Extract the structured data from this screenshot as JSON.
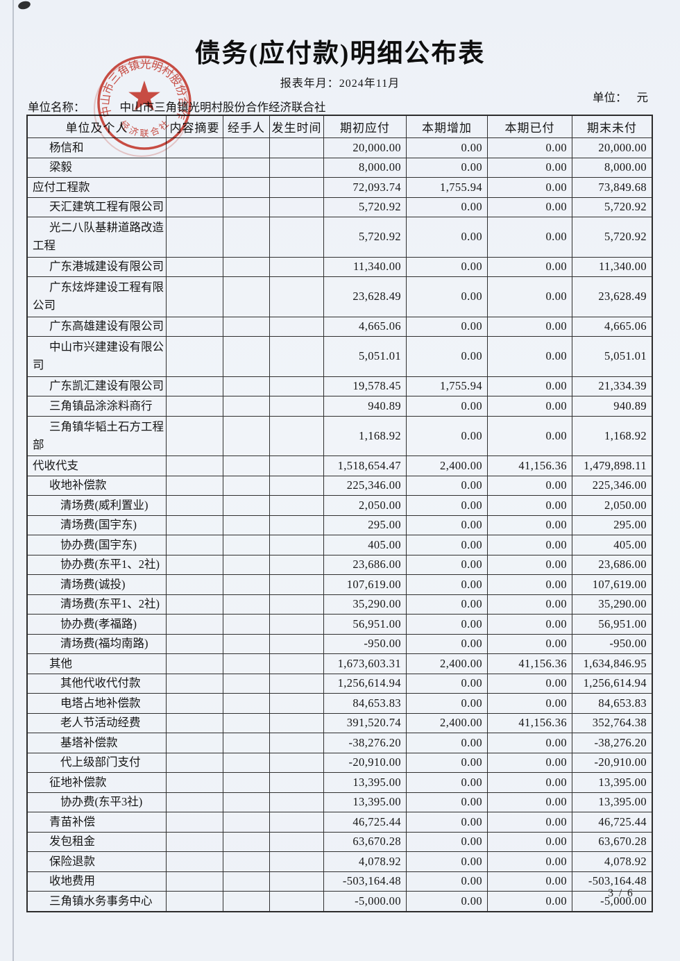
{
  "page": {
    "title": "债务(应付款)明细公布表",
    "report_period_label": "报表年月：",
    "report_period": "2024年11月",
    "unit_name_label": "单位名称：",
    "unit_name": "中山市三角镇光明村股份合作经济联合社",
    "unit_label": "单位：",
    "unit_value": "元",
    "page_number": "3 / 6"
  },
  "stamp": {
    "ring_text": "中山市三角镇光明村股份合作",
    "bottom_text": "经济联合社",
    "color": "#cf382b"
  },
  "table": {
    "headers": [
      "单位及个人",
      "内容摘要",
      "经手人",
      "发生时间",
      "期初应付",
      "本期增加",
      "本期已付",
      "期末未付"
    ],
    "rows": [
      {
        "label": "杨信和",
        "indent": 1,
        "tall": false,
        "values": [
          "20,000.00",
          "0.00",
          "0.00",
          "20,000.00"
        ]
      },
      {
        "label": "梁毅",
        "indent": 1,
        "tall": false,
        "values": [
          "8,000.00",
          "0.00",
          "0.00",
          "8,000.00"
        ]
      },
      {
        "label": "应付工程款",
        "indent": 0,
        "tall": false,
        "values": [
          "72,093.74",
          "1,755.94",
          "0.00",
          "73,849.68"
        ]
      },
      {
        "label": "天汇建筑工程有限公司",
        "indent": 1,
        "tall": false,
        "values": [
          "5,720.92",
          "0.00",
          "0.00",
          "5,720.92"
        ]
      },
      {
        "label": "光二八队基耕道路改造工程",
        "indent": 1,
        "tall": true,
        "values": [
          "5,720.92",
          "0.00",
          "0.00",
          "5,720.92"
        ]
      },
      {
        "label": "广东港城建设有限公司",
        "indent": 1,
        "tall": false,
        "values": [
          "11,340.00",
          "0.00",
          "0.00",
          "11,340.00"
        ]
      },
      {
        "label": "广东炫烨建设工程有限公司",
        "indent": 1,
        "tall": true,
        "values": [
          "23,628.49",
          "0.00",
          "0.00",
          "23,628.49"
        ]
      },
      {
        "label": "广东高雄建设有限公司",
        "indent": 1,
        "tall": false,
        "values": [
          "4,665.06",
          "0.00",
          "0.00",
          "4,665.06"
        ]
      },
      {
        "label": "中山市兴建建设有限公司",
        "indent": 1,
        "tall": true,
        "values": [
          "5,051.01",
          "0.00",
          "0.00",
          "5,051.01"
        ]
      },
      {
        "label": "广东凯汇建设有限公司",
        "indent": 1,
        "tall": false,
        "values": [
          "19,578.45",
          "1,755.94",
          "0.00",
          "21,334.39"
        ]
      },
      {
        "label": "三角镇品涂涂料商行",
        "indent": 1,
        "tall": false,
        "values": [
          "940.89",
          "0.00",
          "0.00",
          "940.89"
        ]
      },
      {
        "label": "三角镇华韬土石方工程部",
        "indent": 1,
        "tall": true,
        "values": [
          "1,168.92",
          "0.00",
          "0.00",
          "1,168.92"
        ]
      },
      {
        "label": "代收代支",
        "indent": 0,
        "tall": false,
        "values": [
          "1,518,654.47",
          "2,400.00",
          "41,156.36",
          "1,479,898.11"
        ]
      },
      {
        "label": "收地补偿款",
        "indent": 1,
        "tall": false,
        "values": [
          "225,346.00",
          "0.00",
          "0.00",
          "225,346.00"
        ]
      },
      {
        "label": "清场费(威利置业)",
        "indent": 2,
        "tall": false,
        "values": [
          "2,050.00",
          "0.00",
          "0.00",
          "2,050.00"
        ]
      },
      {
        "label": "清场费(国宇东)",
        "indent": 2,
        "tall": false,
        "values": [
          "295.00",
          "0.00",
          "0.00",
          "295.00"
        ]
      },
      {
        "label": "协办费(国宇东)",
        "indent": 2,
        "tall": false,
        "values": [
          "405.00",
          "0.00",
          "0.00",
          "405.00"
        ]
      },
      {
        "label": "协办费(东平1、2社)",
        "indent": 2,
        "tall": false,
        "values": [
          "23,686.00",
          "0.00",
          "0.00",
          "23,686.00"
        ]
      },
      {
        "label": "清场费(诚投)",
        "indent": 2,
        "tall": false,
        "values": [
          "107,619.00",
          "0.00",
          "0.00",
          "107,619.00"
        ]
      },
      {
        "label": "清场费(东平1、2社)",
        "indent": 2,
        "tall": false,
        "values": [
          "35,290.00",
          "0.00",
          "0.00",
          "35,290.00"
        ]
      },
      {
        "label": "协办费(孝福路)",
        "indent": 2,
        "tall": false,
        "values": [
          "56,951.00",
          "0.00",
          "0.00",
          "56,951.00"
        ]
      },
      {
        "label": "清场费(福均南路)",
        "indent": 2,
        "tall": false,
        "values": [
          "-950.00",
          "0.00",
          "0.00",
          "-950.00"
        ]
      },
      {
        "label": "其他",
        "indent": 1,
        "tall": false,
        "values": [
          "1,673,603.31",
          "2,400.00",
          "41,156.36",
          "1,634,846.95"
        ]
      },
      {
        "label": "其他代收代付款",
        "indent": 2,
        "tall": false,
        "values": [
          "1,256,614.94",
          "0.00",
          "0.00",
          "1,256,614.94"
        ]
      },
      {
        "label": "电塔占地补偿款",
        "indent": 2,
        "tall": false,
        "values": [
          "84,653.83",
          "0.00",
          "0.00",
          "84,653.83"
        ]
      },
      {
        "label": "老人节活动经费",
        "indent": 2,
        "tall": false,
        "values": [
          "391,520.74",
          "2,400.00",
          "41,156.36",
          "352,764.38"
        ]
      },
      {
        "label": "基塔补偿款",
        "indent": 2,
        "tall": false,
        "values": [
          "-38,276.20",
          "0.00",
          "0.00",
          "-38,276.20"
        ]
      },
      {
        "label": "代上级部门支付",
        "indent": 2,
        "tall": false,
        "values": [
          "-20,910.00",
          "0.00",
          "0.00",
          "-20,910.00"
        ]
      },
      {
        "label": "征地补偿款",
        "indent": 1,
        "tall": false,
        "values": [
          "13,395.00",
          "0.00",
          "0.00",
          "13,395.00"
        ]
      },
      {
        "label": "协办费(东平3社)",
        "indent": 2,
        "tall": false,
        "values": [
          "13,395.00",
          "0.00",
          "0.00",
          "13,395.00"
        ]
      },
      {
        "label": "青苗补偿",
        "indent": 1,
        "tall": false,
        "values": [
          "46,725.44",
          "0.00",
          "0.00",
          "46,725.44"
        ]
      },
      {
        "label": "发包租金",
        "indent": 1,
        "tall": false,
        "values": [
          "63,670.28",
          "0.00",
          "0.00",
          "63,670.28"
        ]
      },
      {
        "label": "保险退款",
        "indent": 1,
        "tall": false,
        "values": [
          "4,078.92",
          "0.00",
          "0.00",
          "4,078.92"
        ]
      },
      {
        "label": "收地费用",
        "indent": 1,
        "tall": false,
        "values": [
          "-503,164.48",
          "0.00",
          "0.00",
          "-503,164.48"
        ]
      },
      {
        "label": "三角镇水务事务中心",
        "indent": 1,
        "tall": false,
        "values": [
          "-5,000.00",
          "0.00",
          "0.00",
          "-5,000.00"
        ]
      }
    ]
  }
}
